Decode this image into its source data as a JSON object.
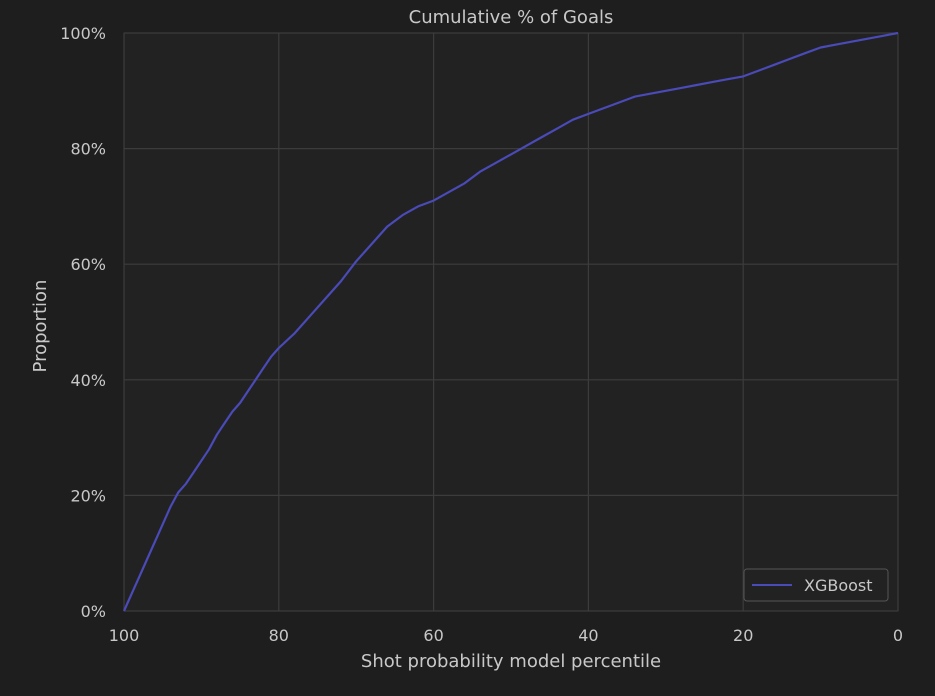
{
  "chart_data": {
    "type": "line",
    "title": "Cumulative % of Goals",
    "xlabel": "Shot probability model percentile",
    "ylabel": "Proportion",
    "xlim": [
      100,
      0
    ],
    "ylim": [
      0,
      1
    ],
    "x_inverted": true,
    "xticks": [
      100,
      80,
      60,
      40,
      20,
      0
    ],
    "xtick_labels": [
      "100",
      "80",
      "60",
      "40",
      "20",
      "0"
    ],
    "yticks": [
      0,
      0.2,
      0.4,
      0.6,
      0.8,
      1.0
    ],
    "ytick_labels": [
      "0%",
      "20%",
      "40%",
      "60%",
      "80%",
      "100%"
    ],
    "grid": true,
    "legend_position": "bottom-right",
    "series": [
      {
        "name": "XGBoost",
        "color": "#4a4ab8",
        "x": [
          100,
          99,
          98,
          97,
          96,
          95,
          94,
          93,
          92,
          91,
          90,
          89,
          88,
          87,
          86,
          85,
          84,
          83,
          82,
          81,
          80,
          78,
          76,
          74,
          72,
          70,
          68,
          66,
          64,
          62,
          60,
          58,
          56,
          54,
          52,
          50,
          48,
          46,
          44,
          42,
          40,
          38,
          36,
          34,
          32,
          30,
          28,
          26,
          24,
          22,
          20,
          18,
          16,
          14,
          12,
          10,
          8,
          6,
          4,
          2,
          0
        ],
        "y": [
          0.0,
          0.03,
          0.06,
          0.09,
          0.12,
          0.15,
          0.18,
          0.205,
          0.22,
          0.24,
          0.26,
          0.28,
          0.305,
          0.325,
          0.345,
          0.36,
          0.38,
          0.4,
          0.42,
          0.44,
          0.455,
          0.48,
          0.51,
          0.54,
          0.57,
          0.605,
          0.635,
          0.665,
          0.685,
          0.7,
          0.71,
          0.725,
          0.74,
          0.76,
          0.775,
          0.79,
          0.805,
          0.82,
          0.835,
          0.85,
          0.86,
          0.87,
          0.88,
          0.89,
          0.895,
          0.9,
          0.905,
          0.91,
          0.915,
          0.92,
          0.925,
          0.935,
          0.945,
          0.955,
          0.965,
          0.975,
          0.98,
          0.985,
          0.99,
          0.995,
          1.0
        ]
      }
    ]
  }
}
